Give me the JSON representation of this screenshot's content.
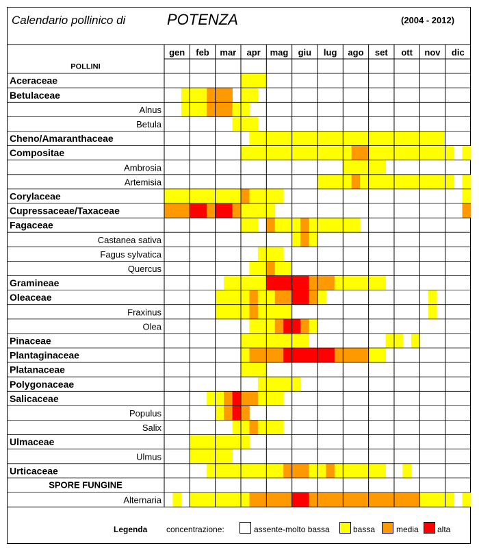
{
  "header": {
    "title": "Calendario pollinico di",
    "city": "POTENZA",
    "years": "(2004 - 2012)"
  },
  "colors": {
    "none": "#ffffff",
    "low": "#ffff00",
    "medium": "#ff9900",
    "high": "#ff0000",
    "grid": "#7f7f7f"
  },
  "chart_data": {
    "type": "heatmap",
    "months": [
      "gen",
      "feb",
      "mar",
      "apr",
      "mag",
      "giu",
      "lug",
      "ago",
      "set",
      "ott",
      "nov",
      "dic"
    ],
    "periods_per_month": 3,
    "level_codes": {
      "0": "assente-molto bassa",
      "1": "bassa",
      "2": "media",
      "3": "alta"
    },
    "rows": [
      {
        "label": "POLLINI",
        "kind": "heading",
        "levels": []
      },
      {
        "label": "Aceraceae",
        "kind": "family",
        "levels": [
          0,
          0,
          0,
          0,
          0,
          0,
          0,
          0,
          0,
          1,
          1,
          1,
          0,
          0,
          0,
          0,
          0,
          0,
          0,
          0,
          0,
          0,
          0,
          0,
          0,
          0,
          0,
          0,
          0,
          0,
          0,
          0,
          0,
          0,
          0,
          0
        ]
      },
      {
        "label": "Betulaceae",
        "kind": "family",
        "levels": [
          0,
          0,
          1,
          1,
          1,
          2,
          2,
          2,
          0,
          1,
          1,
          0,
          0,
          0,
          0,
          0,
          0,
          0,
          0,
          0,
          0,
          0,
          0,
          0,
          0,
          0,
          0,
          0,
          0,
          0,
          0,
          0,
          0,
          0,
          0,
          0
        ]
      },
      {
        "label": "Alnus",
        "kind": "genus",
        "levels": [
          0,
          0,
          1,
          1,
          1,
          2,
          2,
          2,
          1,
          1,
          0,
          0,
          0,
          0,
          0,
          0,
          0,
          0,
          0,
          0,
          0,
          0,
          0,
          0,
          0,
          0,
          0,
          0,
          0,
          0,
          0,
          0,
          0,
          0,
          0,
          0
        ]
      },
      {
        "label": "Betula",
        "kind": "genus",
        "levels": [
          0,
          0,
          0,
          0,
          0,
          0,
          0,
          0,
          1,
          1,
          1,
          0,
          0,
          0,
          0,
          0,
          0,
          0,
          0,
          0,
          0,
          0,
          0,
          0,
          0,
          0,
          0,
          0,
          0,
          0,
          0,
          0,
          0,
          0,
          0,
          0
        ]
      },
      {
        "label": "Cheno/Amaranthaceae",
        "kind": "family",
        "levels": [
          0,
          0,
          0,
          0,
          0,
          0,
          0,
          0,
          0,
          0,
          1,
          1,
          1,
          1,
          1,
          1,
          1,
          1,
          1,
          1,
          1,
          1,
          1,
          1,
          1,
          1,
          1,
          1,
          1,
          1,
          1,
          1,
          1,
          0,
          0,
          0
        ]
      },
      {
        "label": "Compositae",
        "kind": "family",
        "levels": [
          0,
          0,
          0,
          0,
          0,
          0,
          0,
          0,
          0,
          1,
          1,
          1,
          1,
          1,
          1,
          1,
          1,
          1,
          1,
          1,
          1,
          1,
          2,
          2,
          1,
          1,
          1,
          1,
          1,
          1,
          1,
          1,
          1,
          1,
          0,
          1
        ]
      },
      {
        "label": "Ambrosia",
        "kind": "genus",
        "levels": [
          0,
          0,
          0,
          0,
          0,
          0,
          0,
          0,
          0,
          0,
          0,
          0,
          0,
          0,
          0,
          0,
          0,
          0,
          0,
          0,
          0,
          1,
          1,
          1,
          1,
          1,
          0,
          0,
          0,
          0,
          0,
          0,
          0,
          0,
          0,
          0
        ]
      },
      {
        "label": "Artemisia",
        "kind": "genus",
        "levels": [
          0,
          0,
          0,
          0,
          0,
          0,
          0,
          0,
          0,
          0,
          0,
          0,
          0,
          0,
          0,
          0,
          0,
          0,
          1,
          1,
          1,
          1,
          2,
          1,
          1,
          1,
          1,
          1,
          1,
          1,
          1,
          1,
          1,
          1,
          0,
          1
        ]
      },
      {
        "label": "Corylaceae",
        "kind": "family",
        "levels": [
          1,
          1,
          1,
          1,
          1,
          1,
          1,
          1,
          1,
          2,
          1,
          1,
          1,
          1,
          0,
          0,
          0,
          0,
          0,
          0,
          0,
          0,
          0,
          0,
          0,
          0,
          0,
          0,
          0,
          0,
          0,
          0,
          0,
          0,
          0,
          1
        ]
      },
      {
        "label": "Cupressaceae/Taxaceae",
        "kind": "family",
        "levels": [
          2,
          2,
          2,
          3,
          3,
          2,
          3,
          3,
          2,
          1,
          1,
          1,
          1,
          0,
          0,
          0,
          0,
          0,
          0,
          0,
          0,
          0,
          0,
          0,
          0,
          0,
          0,
          0,
          0,
          0,
          0,
          0,
          0,
          0,
          0,
          2
        ]
      },
      {
        "label": "Fagaceae",
        "kind": "family",
        "levels": [
          0,
          0,
          0,
          0,
          0,
          0,
          0,
          0,
          0,
          1,
          1,
          0,
          2,
          1,
          1,
          1,
          2,
          1,
          1,
          1,
          1,
          1,
          1,
          0,
          0,
          0,
          0,
          0,
          0,
          0,
          0,
          0,
          0,
          0,
          0,
          0
        ]
      },
      {
        "label": "Castanea sativa",
        "kind": "genus",
        "levels": [
          0,
          0,
          0,
          0,
          0,
          0,
          0,
          0,
          0,
          0,
          0,
          0,
          0,
          0,
          0,
          1,
          2,
          1,
          0,
          0,
          0,
          0,
          0,
          0,
          0,
          0,
          0,
          0,
          0,
          0,
          0,
          0,
          0,
          0,
          0,
          0
        ]
      },
      {
        "label": "Fagus sylvatica",
        "kind": "genus",
        "levels": [
          0,
          0,
          0,
          0,
          0,
          0,
          0,
          0,
          0,
          0,
          0,
          1,
          1,
          1,
          0,
          0,
          0,
          0,
          0,
          0,
          0,
          0,
          0,
          0,
          0,
          0,
          0,
          0,
          0,
          0,
          0,
          0,
          0,
          0,
          0,
          0
        ]
      },
      {
        "label": "Quercus",
        "kind": "genus",
        "levels": [
          0,
          0,
          0,
          0,
          0,
          0,
          0,
          0,
          0,
          0,
          1,
          1,
          2,
          1,
          1,
          0,
          0,
          0,
          0,
          0,
          0,
          0,
          0,
          0,
          0,
          0,
          0,
          0,
          0,
          0,
          0,
          0,
          0,
          0,
          0,
          0
        ]
      },
      {
        "label": "Gramineae",
        "kind": "family",
        "levels": [
          0,
          0,
          0,
          0,
          0,
          0,
          0,
          1,
          1,
          1,
          1,
          1,
          3,
          3,
          3,
          3,
          3,
          2,
          2,
          2,
          1,
          1,
          1,
          1,
          1,
          1,
          0,
          0,
          0,
          0,
          0,
          0,
          0,
          0,
          0,
          0
        ]
      },
      {
        "label": "Oleaceae",
        "kind": "family",
        "levels": [
          0,
          0,
          0,
          0,
          0,
          0,
          1,
          1,
          1,
          1,
          2,
          1,
          1,
          2,
          2,
          3,
          3,
          2,
          1,
          0,
          0,
          0,
          0,
          0,
          0,
          0,
          0,
          0,
          0,
          0,
          0,
          1,
          0,
          0,
          0,
          0
        ]
      },
      {
        "label": "Fraxinus",
        "kind": "genus",
        "levels": [
          0,
          0,
          0,
          0,
          0,
          0,
          1,
          1,
          1,
          1,
          2,
          1,
          1,
          1,
          1,
          0,
          0,
          0,
          0,
          0,
          0,
          0,
          0,
          0,
          0,
          0,
          0,
          0,
          0,
          0,
          0,
          1,
          0,
          0,
          0,
          0
        ]
      },
      {
        "label": "Olea",
        "kind": "genus",
        "levels": [
          0,
          0,
          0,
          0,
          0,
          0,
          0,
          0,
          0,
          0,
          1,
          1,
          1,
          2,
          3,
          3,
          2,
          1,
          0,
          0,
          0,
          0,
          0,
          0,
          0,
          0,
          0,
          0,
          0,
          0,
          0,
          0,
          0,
          0,
          0,
          0
        ]
      },
      {
        "label": "Pinaceae",
        "kind": "family",
        "levels": [
          0,
          0,
          0,
          0,
          0,
          0,
          0,
          0,
          0,
          1,
          1,
          1,
          1,
          1,
          1,
          1,
          1,
          0,
          0,
          0,
          0,
          0,
          0,
          0,
          0,
          0,
          1,
          1,
          0,
          1,
          0,
          0,
          0,
          0,
          0,
          0
        ]
      },
      {
        "label": "Plantaginaceae",
        "kind": "family",
        "levels": [
          0,
          0,
          0,
          0,
          0,
          0,
          0,
          0,
          0,
          1,
          2,
          2,
          2,
          2,
          3,
          3,
          3,
          3,
          3,
          3,
          2,
          2,
          2,
          2,
          1,
          1,
          0,
          0,
          0,
          0,
          0,
          0,
          0,
          0,
          0,
          0
        ]
      },
      {
        "label": "Platanaceae",
        "kind": "family",
        "levels": [
          0,
          0,
          0,
          0,
          0,
          0,
          0,
          0,
          0,
          1,
          1,
          1,
          0,
          0,
          0,
          0,
          0,
          0,
          0,
          0,
          0,
          0,
          0,
          0,
          0,
          0,
          0,
          0,
          0,
          0,
          0,
          0,
          0,
          0,
          0,
          0
        ]
      },
      {
        "label": "Polygonaceae",
        "kind": "family",
        "levels": [
          0,
          0,
          0,
          0,
          0,
          0,
          0,
          0,
          0,
          0,
          0,
          1,
          1,
          1,
          1,
          1,
          0,
          0,
          0,
          0,
          0,
          0,
          0,
          0,
          0,
          0,
          0,
          0,
          0,
          0,
          0,
          0,
          0,
          0,
          0,
          0
        ]
      },
      {
        "label": "Salicaceae",
        "kind": "family",
        "levels": [
          0,
          0,
          0,
          0,
          0,
          1,
          1,
          2,
          3,
          2,
          2,
          1,
          1,
          1,
          0,
          0,
          0,
          0,
          0,
          0,
          0,
          0,
          0,
          0,
          0,
          0,
          0,
          0,
          0,
          0,
          0,
          0,
          0,
          0,
          0,
          0
        ]
      },
      {
        "label": "Populus",
        "kind": "genus",
        "levels": [
          0,
          0,
          0,
          0,
          0,
          0,
          1,
          2,
          3,
          2,
          0,
          0,
          0,
          0,
          0,
          0,
          0,
          0,
          0,
          0,
          0,
          0,
          0,
          0,
          0,
          0,
          0,
          0,
          0,
          0,
          0,
          0,
          0,
          0,
          0,
          0
        ]
      },
      {
        "label": "Salix",
        "kind": "genus",
        "levels": [
          0,
          0,
          0,
          0,
          0,
          0,
          0,
          0,
          1,
          1,
          2,
          1,
          1,
          1,
          0,
          0,
          0,
          0,
          0,
          0,
          0,
          0,
          0,
          0,
          0,
          0,
          0,
          0,
          0,
          0,
          0,
          0,
          0,
          0,
          0,
          0
        ]
      },
      {
        "label": "Ulmaceae",
        "kind": "family",
        "levels": [
          0,
          0,
          0,
          1,
          1,
          1,
          1,
          1,
          1,
          1,
          0,
          0,
          0,
          0,
          0,
          0,
          0,
          0,
          0,
          0,
          0,
          0,
          0,
          0,
          0,
          0,
          0,
          0,
          0,
          0,
          0,
          0,
          0,
          0,
          0,
          0
        ]
      },
      {
        "label": "Ulmus",
        "kind": "genus",
        "levels": [
          0,
          0,
          0,
          1,
          1,
          1,
          1,
          1,
          0,
          0,
          0,
          0,
          0,
          0,
          0,
          0,
          0,
          0,
          0,
          0,
          0,
          0,
          0,
          0,
          0,
          0,
          0,
          0,
          0,
          0,
          0,
          0,
          0,
          0,
          0,
          0
        ]
      },
      {
        "label": "Urticaceae",
        "kind": "family",
        "levels": [
          0,
          0,
          0,
          0,
          0,
          1,
          1,
          1,
          1,
          1,
          1,
          1,
          1,
          1,
          2,
          2,
          2,
          1,
          1,
          2,
          1,
          1,
          1,
          1,
          1,
          1,
          0,
          0,
          1,
          0,
          0,
          0,
          0,
          0,
          0,
          0
        ]
      },
      {
        "label": "SPORE FUNGINE",
        "kind": "heading",
        "levels": []
      },
      {
        "label": "Alternaria",
        "kind": "genus",
        "levels": [
          0,
          1,
          0,
          1,
          1,
          1,
          1,
          1,
          1,
          1,
          2,
          2,
          2,
          2,
          2,
          3,
          3,
          2,
          2,
          2,
          2,
          2,
          2,
          2,
          2,
          2,
          2,
          2,
          2,
          2,
          1,
          1,
          1,
          1,
          0,
          1
        ]
      }
    ]
  },
  "legend": {
    "title": "Legenda",
    "concentration_label": "concentrazione:",
    "items": [
      {
        "label": "assente-molto bassa",
        "color": "#ffffff"
      },
      {
        "label": "bassa",
        "color": "#ffff00"
      },
      {
        "label": "media",
        "color": "#ff9900"
      },
      {
        "label": "alta",
        "color": "#ff0000"
      }
    ]
  }
}
